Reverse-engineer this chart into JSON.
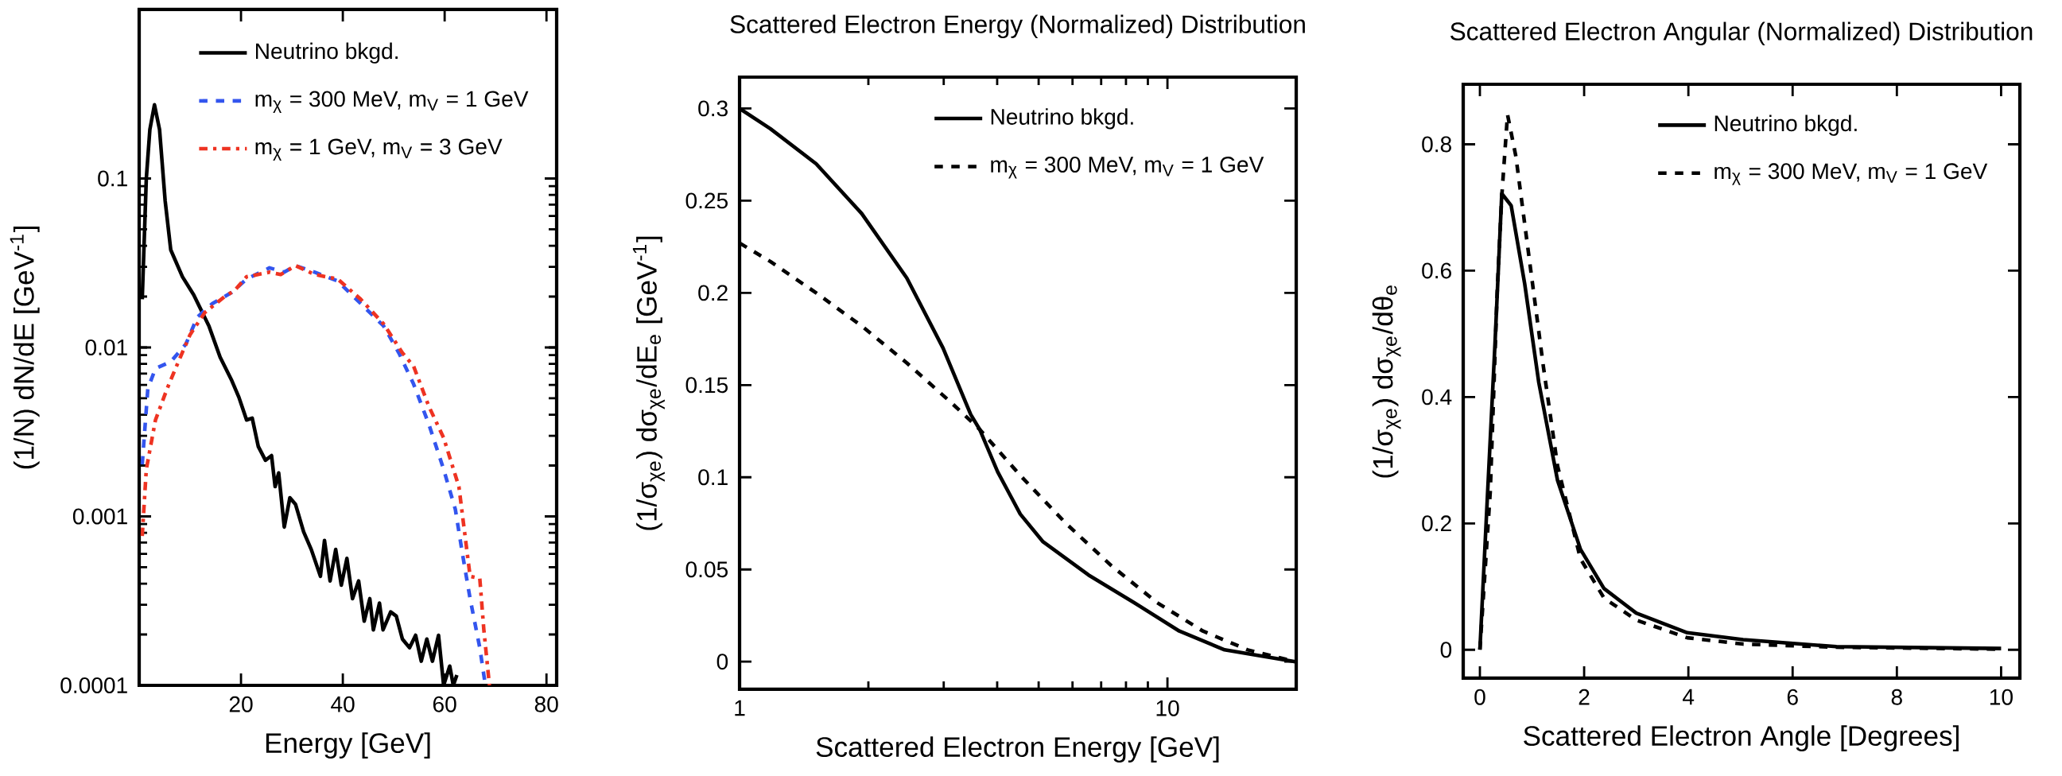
{
  "chart_data": [
    {
      "type": "line",
      "xlabel": "Energy    [GeV]",
      "ylabel": "(1/N) dN/dE     [GeV$^{-1}$]",
      "log": "y",
      "grid": false,
      "legend": "top right",
      "xlim": [
        0,
        82
      ],
      "ylim": [
        0.0001,
        1
      ],
      "xticks": [
        20,
        40,
        60,
        80
      ],
      "yticks": [
        0.0001,
        0.001,
        0.01,
        0.1
      ],
      "series": [
        {
          "name": "Neutrino bkgd.",
          "color": "#000000",
          "line_style": "solid",
          "x": [
            0.6,
            1.4,
            2.1,
            3.0,
            4.0,
            5.1,
            6.2,
            8.5,
            10.7,
            13.7,
            15.9,
            18.1,
            19.6,
            21.1,
            22.2,
            23.4,
            24.8,
            26.0,
            26.7,
            27.4,
            28.5,
            29.6,
            30.7,
            32.3,
            33.8,
            35.6,
            36.4,
            37.5,
            38.6,
            39.7,
            40.8,
            41.9,
            43.1,
            44.2,
            45.3,
            46.0,
            47.2,
            47.9,
            49.4,
            50.5,
            51.7,
            53.1,
            54.3,
            55.4,
            56.5,
            57.6,
            58.8,
            59.8,
            61.0,
            61.7,
            62.4
          ],
          "values": [
            0.0193,
            0.1,
            0.195,
            0.273,
            0.195,
            0.0738,
            0.0378,
            0.0262,
            0.0205,
            0.0134,
            0.00875,
            0.00645,
            0.00506,
            0.00372,
            0.00382,
            0.00259,
            0.00215,
            0.00229,
            0.0015,
            0.00181,
            0.000865,
            0.00129,
            0.00118,
            0.00081,
            0.000637,
            0.000442,
            0.00072,
            0.000415,
            0.000637,
            0.000392,
            0.000564,
            0.000326,
            0.000415,
            0.00024,
            0.000326,
            0.000213,
            0.000307,
            0.000213,
            0.000272,
            0.000257,
            0.000188,
            0.000167,
            0.000198,
            0.000139,
            0.000188,
            0.000139,
            0.000198,
            0.0001,
            0.00013,
            0.0001,
            0.000115
          ]
        },
        {
          "name": "m$_{χ}$ = 300 MeV, m$_{V}$ = 1 GeV",
          "color": "#3355ee",
          "line_style": "dashed",
          "x": [
            0.6,
            1.7,
            3.2,
            6.2,
            9.2,
            11.4,
            14.4,
            18.1,
            21.1,
            25.6,
            28.5,
            30.7,
            34.5,
            39.0,
            43.5,
            48.0,
            51.0,
            53.9,
            56.9,
            59.8,
            62.1,
            63.5,
            65.0,
            66.9,
            68.0
          ],
          "values": [
            0.00203,
            0.00571,
            0.0075,
            0.00823,
            0.0105,
            0.0151,
            0.0182,
            0.0211,
            0.0254,
            0.0296,
            0.0279,
            0.0305,
            0.0279,
            0.0247,
            0.0182,
            0.0134,
            0.00929,
            0.00607,
            0.00351,
            0.0019,
            0.0011,
            0.0006,
            0.000326,
            0.000167,
            0.0001
          ]
        },
        {
          "name": "m$_{χ}$ = 1 GeV, m$_{V}$ = 3 GeV",
          "color": "#ee3322",
          "line_style": "dashdot",
          "x": [
            0.6,
            1.4,
            3.2,
            5.5,
            7.7,
            10.0,
            12.9,
            16.7,
            18.8,
            21.1,
            25.6,
            27.8,
            30.7,
            34.5,
            39.0,
            43.5,
            48.0,
            51.7,
            53.9,
            56.9,
            59.8,
            62.8,
            65.0,
            66.9,
            67.7,
            68.8
          ],
          "values": [
            0.000766,
            0.0019,
            0.00372,
            0.00571,
            0.00823,
            0.0119,
            0.0161,
            0.0199,
            0.0218,
            0.0262,
            0.0279,
            0.027,
            0.0305,
            0.027,
            0.0254,
            0.0193,
            0.0138,
            0.00929,
            0.00775,
            0.00448,
            0.00292,
            0.0015,
            0.000442,
            0.00043,
            0.000213,
            0.0001
          ]
        }
      ]
    },
    {
      "type": "line",
      "title": "Scattered Electron Energy (Normalized) Distribution",
      "xlabel": "Scattered Electron Energy    [GeV]",
      "ylabel": "(1/σ$_{χe}$) dσ$_{χe}$/dE$_{e}$     [GeV$^{-1}$]",
      "log": "x",
      "grid": false,
      "legend": "top right",
      "xlim": [
        1,
        20
      ],
      "ylim": [
        -0.015,
        0.317
      ],
      "xticks": [
        1,
        10
      ],
      "yticks": [
        0,
        0.05,
        0.1,
        0.15,
        0.2,
        0.25,
        0.3
      ],
      "series": [
        {
          "name": "Neutrino bkgd.",
          "color": "#000000",
          "line_style": "solid",
          "x": [
            1,
            1.18,
            1.51,
            1.93,
            2.46,
            2.99,
            3.47,
            3.64,
            4.01,
            4.53,
            5.12,
            6.54,
            8.36,
            10.66,
            13.6,
            19.9
          ],
          "values": [
            0.3,
            0.289,
            0.27,
            0.243,
            0.208,
            0.17,
            0.134,
            0.126,
            0.103,
            0.08,
            0.065,
            0.047,
            0.032,
            0.0166,
            0.0064,
            0
          ]
        },
        {
          "name": "m$_{χ}$ = 300 MeV, m$_{V}$ = 1 GeV",
          "color": "#000000",
          "line_style": "dashed",
          "x": [
            1,
            1.18,
            1.51,
            1.93,
            2.46,
            3.14,
            3.64,
            4.53,
            5.79,
            7.4,
            9.46,
            12.1,
            15.4,
            19.9
          ],
          "values": [
            0.227,
            0.217,
            0.2,
            0.182,
            0.162,
            0.14,
            0.126,
            0.101,
            0.075,
            0.052,
            0.032,
            0.0166,
            0.0064,
            0
          ]
        }
      ]
    },
    {
      "type": "line",
      "title": "Scattered Electron Angular (Normalized) Distribution",
      "xlabel": "Scattered Electron Angle    [Degrees]",
      "ylabel": "(1/σ$_{χe}$) dσ$_{χe}$/dθ$_{e}$",
      "grid": false,
      "legend": "top right",
      "xlim": [
        -0.32,
        10.36
      ],
      "ylim": [
        -0.045,
        0.895
      ],
      "xticks": [
        0,
        2,
        4,
        6,
        8,
        10
      ],
      "yticks": [
        0,
        0.2,
        0.4,
        0.6,
        0.8
      ],
      "series": [
        {
          "name": "Neutrino bkgd.",
          "color": "#000000",
          "line_style": "solid",
          "x": [
            0,
            0.15,
            0.29,
            0.42,
            0.6,
            0.86,
            1.13,
            1.49,
            1.93,
            2.38,
            3.0,
            3.98,
            5.05,
            6.84,
            10
          ],
          "values": [
            0,
            0.252,
            0.485,
            0.722,
            0.703,
            0.579,
            0.423,
            0.268,
            0.159,
            0.097,
            0.058,
            0.027,
            0.016,
            0.005,
            0.002
          ]
        },
        {
          "name": "m$_{χ}$ = 300 MeV, m$_{V}$ = 1 GeV",
          "color": "#000000",
          "line_style": "dashed",
          "x": [
            0,
            0.2,
            0.33,
            0.42,
            0.53,
            0.69,
            0.95,
            1.22,
            1.49,
            1.93,
            2.38,
            3.0,
            3.98,
            5.05,
            6.84,
            10
          ],
          "values": [
            0,
            0.252,
            0.563,
            0.718,
            0.847,
            0.781,
            0.617,
            0.447,
            0.291,
            0.144,
            0.082,
            0.047,
            0.019,
            0.009,
            0.004,
            0.001
          ]
        }
      ]
    }
  ]
}
